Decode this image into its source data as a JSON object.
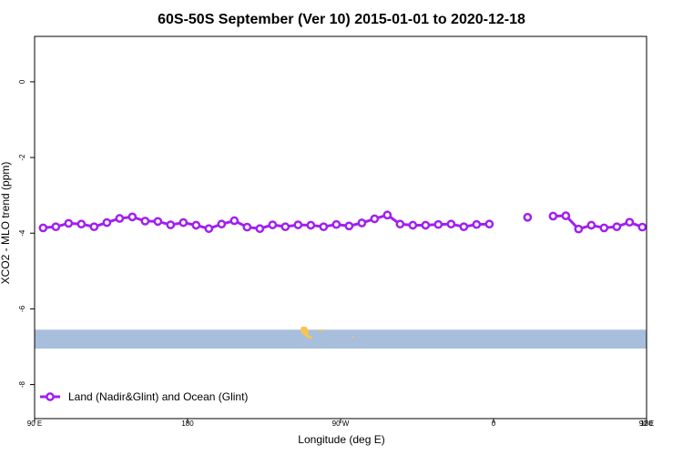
{
  "chart_data": {
    "type": "line",
    "title": "60S-50S September (Ver 10)   2015-01-01 to 2020-12-18",
    "xlabel": "Longitude (deg E)",
    "ylabel": "XCO2 - MLO trend (ppm)",
    "xlim": [
      90,
      450
    ],
    "ylim": [
      -8.9,
      1.2
    ],
    "x_tick_values": [
      90,
      180,
      270,
      360,
      450
    ],
    "x_tick_labels": [
      "90 E",
      "180",
      "90 W",
      "0",
      "90 E"
    ],
    "x_label_last": "180",
    "y_ticks": [
      0,
      -2,
      -4,
      -6,
      -8
    ],
    "grid": false,
    "legend_position": "bottom-left",
    "series": [
      {
        "name": "Land (Nadir&Glint) and Ocean (Glint)",
        "color": "#a020f0",
        "segments": [
          {
            "x": [
              95,
              102.5,
              110,
              117.5,
              125,
              132.5,
              140,
              147.5,
              155,
              162.5,
              170,
              177.5,
              185,
              192.5,
              200,
              207.5,
              215,
              222.5,
              230,
              237.5,
              245,
              252.5,
              260,
              267.5,
              275,
              282.5,
              290,
              297.5,
              305,
              312.5,
              320,
              327.5,
              335,
              342.5,
              350,
              357.5
            ],
            "y": [
              -3.86,
              -3.83,
              -3.74,
              -3.76,
              -3.83,
              -3.72,
              -3.61,
              -3.57,
              -3.68,
              -3.69,
              -3.78,
              -3.72,
              -3.79,
              -3.88,
              -3.76,
              -3.67,
              -3.84,
              -3.88,
              -3.78,
              -3.83,
              -3.78,
              -3.79,
              -3.83,
              -3.77,
              -3.81,
              -3.73,
              -3.62,
              -3.52,
              -3.76,
              -3.79,
              -3.79,
              -3.77,
              -3.76,
              -3.83,
              -3.77,
              -3.76
            ]
          },
          {
            "x": [
              380
            ],
            "y": [
              -3.58
            ]
          },
          {
            "x": [
              395,
              402.5,
              410,
              417.5,
              425,
              432.5,
              440,
              447.5
            ],
            "y": [
              -3.55,
              -3.54,
              -3.89,
              -3.79,
              -3.86,
              -3.83,
              -3.71,
              -3.84
            ]
          }
        ]
      }
    ]
  },
  "band": {
    "color": "#a8bedd",
    "y_top": -6.55,
    "y_bottom": -7.05
  },
  "land_color": "#f7c552"
}
